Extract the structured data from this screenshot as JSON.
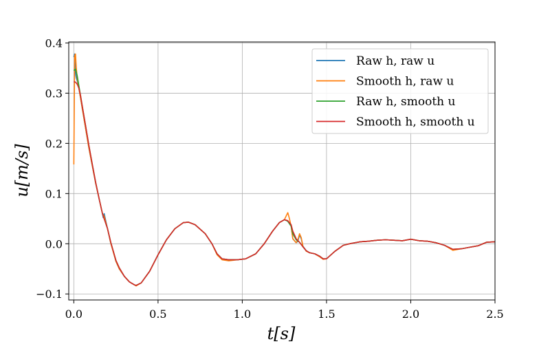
{
  "chart_data": {
    "type": "line",
    "xlabel": "t[s]",
    "ylabel": "u[m/s]",
    "xlim": [
      -0.03,
      2.5
    ],
    "ylim": [
      -0.112,
      0.402
    ],
    "xticks": [
      0.0,
      0.5,
      1.0,
      1.5,
      2.0,
      2.5
    ],
    "xtick_labels": [
      "0.0",
      "0.5",
      "1.0",
      "1.5",
      "2.0",
      "2.5"
    ],
    "yticks": [
      -0.1,
      0.0,
      0.1,
      0.2,
      0.3,
      0.4
    ],
    "ytick_labels": [
      "−0.1",
      "0.0",
      "0.1",
      "0.2",
      "0.3",
      "0.4"
    ],
    "grid": true,
    "legend_position": "top-right",
    "series": [
      {
        "name": "Raw h, raw u",
        "color": "#1f77b4",
        "x": [
          0.0,
          0.005,
          0.01,
          0.015,
          0.02,
          0.03,
          0.04,
          0.05,
          0.07,
          0.09,
          0.11,
          0.13,
          0.15,
          0.17,
          0.175,
          0.18,
          0.2,
          0.22,
          0.23,
          0.25,
          0.27,
          0.3,
          0.33,
          0.36,
          0.37,
          0.4,
          0.45,
          0.5,
          0.55,
          0.6,
          0.65,
          0.68,
          0.72,
          0.78,
          0.82,
          0.85,
          0.88,
          0.92,
          0.97,
          1.02,
          1.08,
          1.13,
          1.18,
          1.22,
          1.25,
          1.27,
          1.29,
          1.3,
          1.32,
          1.33,
          1.34,
          1.35,
          1.36,
          1.38,
          1.4,
          1.43,
          1.46,
          1.48,
          1.5,
          1.55,
          1.6,
          1.65,
          1.7,
          1.75,
          1.8,
          1.85,
          1.9,
          1.95,
          2.0,
          2.05,
          2.1,
          2.15,
          2.2,
          2.25,
          2.3,
          2.35,
          2.4,
          2.45,
          2.5
        ],
        "values": [
          0.372,
          0.378,
          0.34,
          0.33,
          0.325,
          0.31,
          0.29,
          0.27,
          0.23,
          0.19,
          0.155,
          0.12,
          0.09,
          0.06,
          0.052,
          0.06,
          0.03,
          0.0,
          -0.01,
          -0.035,
          -0.05,
          -0.065,
          -0.076,
          -0.082,
          -0.083,
          -0.078,
          -0.055,
          -0.022,
          0.008,
          0.03,
          0.042,
          0.043,
          0.038,
          0.02,
          0.0,
          -0.02,
          -0.03,
          -0.032,
          -0.032,
          -0.03,
          -0.02,
          0.0,
          0.025,
          0.042,
          0.048,
          0.045,
          0.035,
          0.01,
          0.002,
          0.005,
          0.018,
          0.01,
          -0.005,
          -0.014,
          -0.018,
          -0.02,
          -0.025,
          -0.03,
          -0.03,
          -0.015,
          -0.003,
          0.001,
          0.004,
          0.005,
          0.007,
          0.008,
          0.007,
          0.006,
          0.009,
          0.006,
          0.005,
          0.002,
          -0.003,
          -0.012,
          -0.01,
          -0.007,
          -0.004,
          0.003,
          0.004
        ]
      },
      {
        "name": "Smooth h, raw u",
        "color": "#ff7f0e",
        "x": [
          0.0,
          0.005,
          0.01,
          0.015,
          0.02,
          0.03,
          0.04,
          0.05,
          0.07,
          0.09,
          0.11,
          0.13,
          0.15,
          0.17,
          0.18,
          0.2,
          0.22,
          0.25,
          0.27,
          0.3,
          0.33,
          0.36,
          0.37,
          0.4,
          0.45,
          0.5,
          0.55,
          0.6,
          0.65,
          0.68,
          0.72,
          0.78,
          0.82,
          0.85,
          0.88,
          0.92,
          0.97,
          1.02,
          1.08,
          1.13,
          1.18,
          1.22,
          1.25,
          1.26,
          1.27,
          1.28,
          1.29,
          1.3,
          1.32,
          1.33,
          1.34,
          1.35,
          1.36,
          1.38,
          1.4,
          1.43,
          1.46,
          1.48,
          1.5,
          1.55,
          1.6,
          1.65,
          1.7,
          1.75,
          1.8,
          1.85,
          1.9,
          1.95,
          2.0,
          2.05,
          2.1,
          2.15,
          2.2,
          2.25,
          2.3,
          2.35,
          2.4,
          2.45,
          2.5
        ],
        "values": [
          0.158,
          0.375,
          0.378,
          0.35,
          0.33,
          0.31,
          0.29,
          0.27,
          0.23,
          0.19,
          0.155,
          0.12,
          0.09,
          0.06,
          0.055,
          0.03,
          0.0,
          -0.035,
          -0.05,
          -0.065,
          -0.076,
          -0.082,
          -0.084,
          -0.078,
          -0.055,
          -0.022,
          0.008,
          0.03,
          0.042,
          0.043,
          0.038,
          0.02,
          0.0,
          -0.022,
          -0.032,
          -0.034,
          -0.032,
          -0.03,
          -0.02,
          0.0,
          0.025,
          0.042,
          0.048,
          0.055,
          0.062,
          0.05,
          0.035,
          0.01,
          0.002,
          0.008,
          0.02,
          0.012,
          -0.005,
          -0.015,
          -0.018,
          -0.02,
          -0.026,
          -0.031,
          -0.03,
          -0.015,
          -0.003,
          0.001,
          0.004,
          0.005,
          0.007,
          0.008,
          0.007,
          0.006,
          0.009,
          0.006,
          0.005,
          0.002,
          -0.003,
          -0.013,
          -0.01,
          -0.007,
          -0.004,
          0.003,
          0.004
        ]
      },
      {
        "name": "Raw h, smooth u",
        "color": "#2ca02c",
        "x": [
          0.0,
          0.01,
          0.02,
          0.03,
          0.04,
          0.05,
          0.07,
          0.09,
          0.11,
          0.13,
          0.15,
          0.17,
          0.2,
          0.22,
          0.25,
          0.27,
          0.3,
          0.33,
          0.36,
          0.37,
          0.4,
          0.45,
          0.5,
          0.55,
          0.6,
          0.65,
          0.68,
          0.72,
          0.78,
          0.82,
          0.85,
          0.88,
          0.92,
          0.97,
          1.02,
          1.08,
          1.13,
          1.18,
          1.22,
          1.25,
          1.27,
          1.29,
          1.3,
          1.32,
          1.34,
          1.36,
          1.38,
          1.4,
          1.43,
          1.46,
          1.48,
          1.5,
          1.55,
          1.6,
          1.65,
          1.7,
          1.75,
          1.8,
          1.85,
          1.9,
          1.95,
          2.0,
          2.05,
          2.1,
          2.15,
          2.2,
          2.25,
          2.3,
          2.35,
          2.4,
          2.45,
          2.5
        ],
        "values": [
          0.345,
          0.348,
          0.335,
          0.315,
          0.295,
          0.275,
          0.235,
          0.195,
          0.158,
          0.122,
          0.09,
          0.06,
          0.03,
          0.002,
          -0.033,
          -0.048,
          -0.065,
          -0.076,
          -0.082,
          -0.083,
          -0.078,
          -0.055,
          -0.022,
          0.008,
          0.03,
          0.042,
          0.043,
          0.038,
          0.02,
          0.0,
          -0.02,
          -0.03,
          -0.032,
          -0.032,
          -0.03,
          -0.02,
          0.0,
          0.025,
          0.042,
          0.048,
          0.045,
          0.035,
          0.02,
          0.008,
          0.003,
          -0.006,
          -0.014,
          -0.018,
          -0.02,
          -0.025,
          -0.03,
          -0.03,
          -0.015,
          -0.003,
          0.001,
          0.004,
          0.005,
          0.007,
          0.008,
          0.007,
          0.006,
          0.009,
          0.006,
          0.005,
          0.002,
          -0.003,
          -0.011,
          -0.01,
          -0.007,
          -0.004,
          0.003,
          0.004
        ]
      },
      {
        "name": "Smooth h, smooth u",
        "color": "#d62728",
        "x": [
          0.0,
          0.01,
          0.02,
          0.03,
          0.04,
          0.05,
          0.07,
          0.09,
          0.11,
          0.13,
          0.15,
          0.17,
          0.2,
          0.22,
          0.25,
          0.27,
          0.3,
          0.33,
          0.36,
          0.37,
          0.4,
          0.45,
          0.5,
          0.55,
          0.6,
          0.65,
          0.68,
          0.72,
          0.78,
          0.82,
          0.85,
          0.88,
          0.92,
          0.97,
          1.02,
          1.08,
          1.13,
          1.18,
          1.22,
          1.25,
          1.27,
          1.29,
          1.3,
          1.32,
          1.34,
          1.36,
          1.38,
          1.4,
          1.43,
          1.46,
          1.48,
          1.5,
          1.55,
          1.6,
          1.65,
          1.7,
          1.75,
          1.8,
          1.85,
          1.9,
          1.95,
          2.0,
          2.05,
          2.1,
          2.15,
          2.2,
          2.25,
          2.3,
          2.35,
          2.4,
          2.45,
          2.5
        ],
        "values": [
          0.323,
          0.322,
          0.318,
          0.31,
          0.295,
          0.275,
          0.235,
          0.195,
          0.158,
          0.122,
          0.09,
          0.06,
          0.03,
          0.002,
          -0.033,
          -0.048,
          -0.065,
          -0.076,
          -0.082,
          -0.083,
          -0.078,
          -0.055,
          -0.022,
          0.008,
          0.03,
          0.042,
          0.043,
          0.038,
          0.02,
          0.0,
          -0.02,
          -0.03,
          -0.032,
          -0.032,
          -0.03,
          -0.02,
          0.0,
          0.025,
          0.042,
          0.048,
          0.046,
          0.038,
          0.025,
          0.01,
          0.003,
          -0.006,
          -0.014,
          -0.018,
          -0.02,
          -0.025,
          -0.03,
          -0.03,
          -0.015,
          -0.003,
          0.001,
          0.004,
          0.005,
          0.007,
          0.008,
          0.007,
          0.006,
          0.009,
          0.006,
          0.005,
          0.002,
          -0.003,
          -0.011,
          -0.01,
          -0.007,
          -0.004,
          0.003,
          0.004
        ]
      }
    ]
  }
}
